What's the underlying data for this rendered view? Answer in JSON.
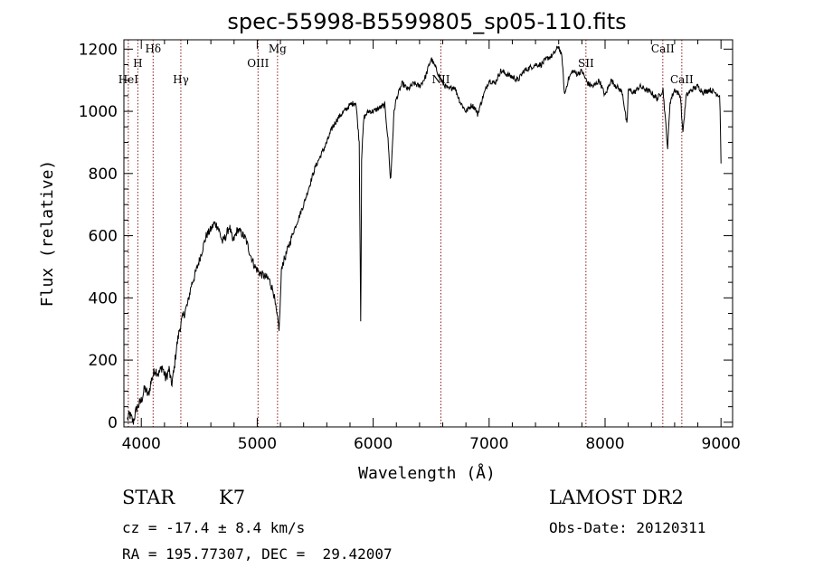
{
  "chart_data": {
    "type": "line",
    "title": "spec-55998-B5599805_sp05-110.fits",
    "xlabel": "Wavelength (Å)",
    "ylabel": "Flux (relative)",
    "xlim": [
      3850,
      9100
    ],
    "ylim": [
      -15,
      1230
    ],
    "x_ticks": [
      4000,
      5000,
      6000,
      7000,
      8000,
      9000
    ],
    "y_ticks": [
      0,
      200,
      400,
      600,
      800,
      1000,
      1200
    ],
    "grid": false,
    "series": [
      {
        "x": [
          3880,
          3900,
          3930,
          3960,
          4000,
          4030,
          4060,
          4090,
          4120,
          4150,
          4180,
          4210,
          4240,
          4260,
          4280,
          4300,
          4330,
          4360,
          4400,
          4430,
          4460,
          4500,
          4530,
          4560,
          4600,
          4630,
          4660,
          4700,
          4730,
          4760,
          4790,
          4830,
          4860,
          4900,
          4940,
          4980,
          5020,
          5060,
          5100,
          5140,
          5170,
          5190,
          5210,
          5250,
          5300,
          5350,
          5400,
          5450,
          5500,
          5550,
          5600,
          5650,
          5700,
          5750,
          5800,
          5850,
          5880,
          5893,
          5900,
          5920,
          5960,
          6000,
          6050,
          6100,
          6130,
          6150,
          6180,
          6200,
          6250,
          6300,
          6350,
          6400,
          6450,
          6500,
          6550,
          6600,
          6650,
          6700,
          6750,
          6800,
          6850,
          6880,
          6900,
          6950,
          7000,
          7050,
          7100,
          7150,
          7200,
          7250,
          7300,
          7350,
          7400,
          7450,
          7500,
          7550,
          7600,
          7630,
          7650,
          7680,
          7720,
          7760,
          7800,
          7850,
          7900,
          7950,
          8000,
          8050,
          8100,
          8150,
          8190,
          8200,
          8250,
          8300,
          8350,
          8400,
          8450,
          8500,
          8540,
          8560,
          8600,
          8650,
          8670,
          8700,
          8750,
          8800,
          8850,
          8900,
          8950,
          8990,
          9000
        ],
        "values": [
          10,
          25,
          0,
          45,
          70,
          110,
          85,
          140,
          170,
          155,
          180,
          140,
          170,
          120,
          160,
          230,
          300,
          340,
          380,
          440,
          470,
          520,
          560,
          600,
          620,
          640,
          630,
          580,
          600,
          630,
          580,
          620,
          610,
          590,
          540,
          500,
          480,
          470,
          460,
          420,
          340,
          300,
          500,
          540,
          600,
          650,
          700,
          760,
          820,
          860,
          900,
          950,
          980,
          1000,
          1020,
          1030,
          900,
          280,
          850,
          980,
          1000,
          1000,
          1010,
          1020,
          900,
          770,
          1000,
          1040,
          1090,
          1070,
          1090,
          1080,
          1110,
          1170,
          1130,
          1090,
          1070,
          1080,
          1030,
          1000,
          1020,
          1010,
          990,
          1050,
          1100,
          1090,
          1130,
          1120,
          1110,
          1100,
          1130,
          1140,
          1150,
          1150,
          1170,
          1180,
          1210,
          1170,
          1050,
          1100,
          1130,
          1120,
          1130,
          1090,
          1080,
          1100,
          1050,
          1100,
          1080,
          1060,
          950,
          1070,
          1060,
          1080,
          1070,
          1060,
          1040,
          1070,
          880,
          1030,
          1070,
          1050,
          930,
          1050,
          1070,
          1080,
          1060,
          1070,
          1060,
          1050,
          830
        ]
      }
    ],
    "line_markers": [
      {
        "label": "HeI",
        "x": 3888
      },
      {
        "label": "H",
        "x": 3970
      },
      {
        "label": "Hδ",
        "x": 4102
      },
      {
        "label": "Hγ",
        "x": 4341
      },
      {
        "label": "OIII",
        "x": 5007
      },
      {
        "label": "Mg",
        "x": 5175
      },
      {
        "label": "NII",
        "x": 6584
      },
      {
        "label": "SII",
        "x": 7835
      },
      {
        "label": "CaII",
        "x": 8498
      },
      {
        "label": "CaII",
        "x": 8662
      }
    ]
  },
  "info": {
    "object_class": "STAR",
    "subclass": "K7",
    "redshift": "cz = -17.4 ± 8.4 km/s",
    "coords": "RA = 195.77307, DEC =  29.42007",
    "survey": "LAMOST DR2",
    "obs_date": "Obs-Date: 20120311"
  }
}
